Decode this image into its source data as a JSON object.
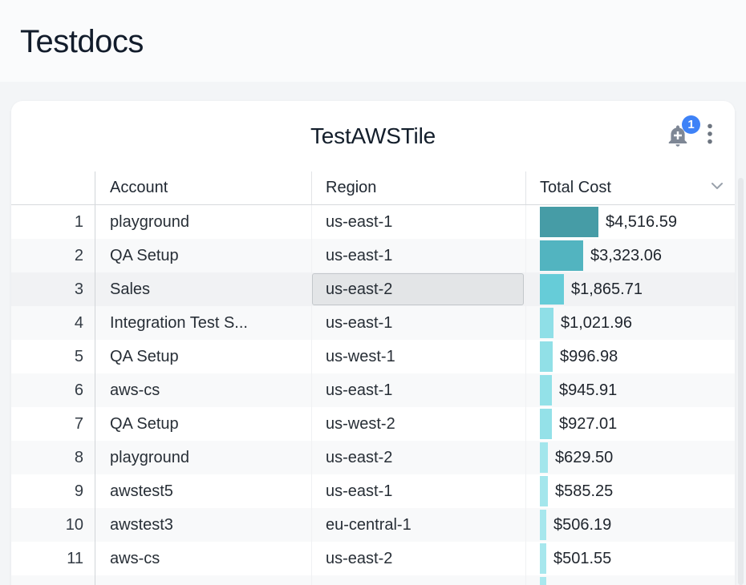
{
  "page": {
    "title": "Testdocs",
    "background": "#f3f5f7",
    "top_band_background": "#fafbfc"
  },
  "tile": {
    "title": "TestAWSTile",
    "notification": {
      "badge_count": "1",
      "badge_color": "#3e82f7",
      "bell_icon": "bell-plus-icon"
    },
    "menu_icon": "kebab-vertical-icon",
    "sort_icon": "chevron-down-icon"
  },
  "table": {
    "columns": [
      {
        "label": "Account"
      },
      {
        "label": "Region"
      },
      {
        "label": "Total Cost"
      }
    ],
    "selected_cell": {
      "row_num": "3",
      "column": "Region",
      "value": "us-east-2"
    },
    "colors": {
      "row_band": "#f8f9fa",
      "highlight_row": "#f1f2f4",
      "selected_cell_bg": "#e3e5e7",
      "selected_cell_border": "#c3c7cb"
    },
    "rows": [
      {
        "num": "1",
        "account": "playground",
        "region": "us-east-1",
        "cost": "$4,516.59",
        "bar": {
          "width": 73,
          "color": "#469ca6"
        }
      },
      {
        "num": "2",
        "account": "QA Setup",
        "region": "us-east-1",
        "cost": "$3,323.06",
        "bar": {
          "width": 54,
          "color": "#52b4c0"
        }
      },
      {
        "num": "3",
        "account": "Sales",
        "region": "us-east-2",
        "cost": "$1,865.71",
        "bar": {
          "width": 30,
          "color": "#66ccd8"
        },
        "highlight": true,
        "region_selected": true
      },
      {
        "num": "4",
        "account": "Integration Test S...",
        "region": "us-east-1",
        "cost": "$1,021.96",
        "bar": {
          "width": 17,
          "color": "#8fdfe7"
        }
      },
      {
        "num": "5",
        "account": "QA Setup",
        "region": "us-west-1",
        "cost": "$996.98",
        "bar": {
          "width": 16,
          "color": "#91e0e7"
        }
      },
      {
        "num": "6",
        "account": "aws-cs",
        "region": "us-east-1",
        "cost": "$945.91",
        "bar": {
          "width": 15,
          "color": "#93e1e8"
        }
      },
      {
        "num": "7",
        "account": "QA Setup",
        "region": "us-west-2",
        "cost": "$927.01",
        "bar": {
          "width": 15,
          "color": "#94e1e8"
        }
      },
      {
        "num": "8",
        "account": "playground",
        "region": "us-east-2",
        "cost": "$629.50",
        "bar": {
          "width": 10,
          "color": "#a3e6ec"
        }
      },
      {
        "num": "9",
        "account": "awstest5",
        "region": "us-east-1",
        "cost": "$585.25",
        "bar": {
          "width": 10,
          "color": "#a4e6ec"
        }
      },
      {
        "num": "10",
        "account": "awstest3",
        "region": "eu-central-1",
        "cost": "$506.19",
        "bar": {
          "width": 8,
          "color": "#a7e7ed"
        }
      },
      {
        "num": "11",
        "account": "aws-cs",
        "region": "us-east-2",
        "cost": "$501.55",
        "bar": {
          "width": 8,
          "color": "#a7e7ed"
        }
      },
      {
        "num": "",
        "account": "",
        "region": "",
        "cost": "",
        "bar": {
          "width": 8,
          "color": "#a9e8ee"
        }
      }
    ]
  }
}
